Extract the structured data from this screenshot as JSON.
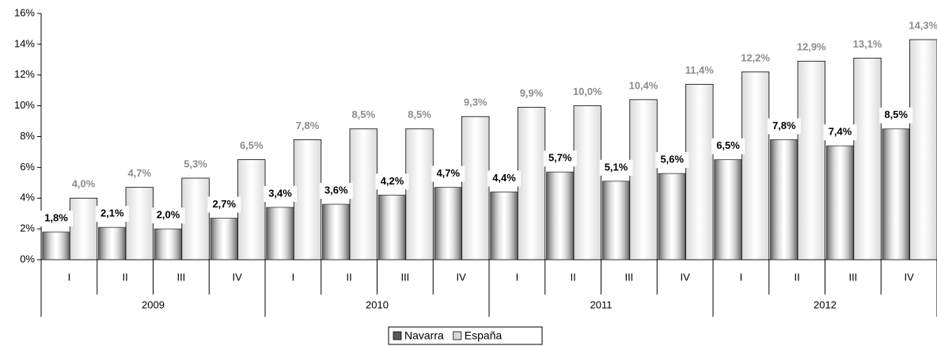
{
  "chart_data": {
    "type": "bar",
    "categories": [
      "I",
      "II",
      "III",
      "IV",
      "I",
      "II",
      "III",
      "IV",
      "I",
      "II",
      "III",
      "IV",
      "I",
      "II",
      "III",
      "IV"
    ],
    "category_groups": [
      "2009",
      "2010",
      "2011",
      "2012"
    ],
    "series": [
      {
        "name": "Navarra",
        "color": "#595959",
        "values": [
          1.8,
          2.1,
          2.0,
          2.7,
          3.4,
          3.6,
          4.2,
          4.7,
          4.4,
          5.7,
          5.1,
          5.6,
          6.5,
          7.8,
          7.4,
          8.5
        ],
        "value_labels": [
          "1,8%",
          "2,1%",
          "2,0%",
          "2,7%",
          "3,4%",
          "3,6%",
          "4,2%",
          "4,7%",
          "4,4%",
          "5,7%",
          "5,1%",
          "5,6%",
          "6,5%",
          "7,8%",
          "7,4%",
          "8,5%"
        ]
      },
      {
        "name": "España",
        "color": "#d9d9d9",
        "values": [
          4.0,
          4.7,
          5.3,
          6.5,
          7.8,
          8.5,
          8.5,
          9.3,
          9.9,
          10.0,
          10.4,
          11.4,
          12.2,
          12.9,
          13.1,
          14.3
        ],
        "value_labels": [
          "4,0%",
          "4,7%",
          "5,3%",
          "6,5%",
          "7,8%",
          "8,5%",
          "8,5%",
          "9,3%",
          "9,9%",
          "10,0%",
          "10,4%",
          "11,4%",
          "12,2%",
          "12,9%",
          "13,1%",
          "14,3%"
        ]
      }
    ],
    "ylim": [
      0,
      16
    ],
    "yticks": [
      {
        "value": 0,
        "label": "0%"
      },
      {
        "value": 2,
        "label": "2%"
      },
      {
        "value": 4,
        "label": "4%"
      },
      {
        "value": 6,
        "label": "6%"
      },
      {
        "value": 8,
        "label": "8%"
      },
      {
        "value": 10,
        "label": "10%"
      },
      {
        "value": 12,
        "label": "12%"
      },
      {
        "value": 14,
        "label": "14%"
      },
      {
        "value": 16,
        "label": "16%"
      }
    ],
    "legend": "bottom"
  }
}
